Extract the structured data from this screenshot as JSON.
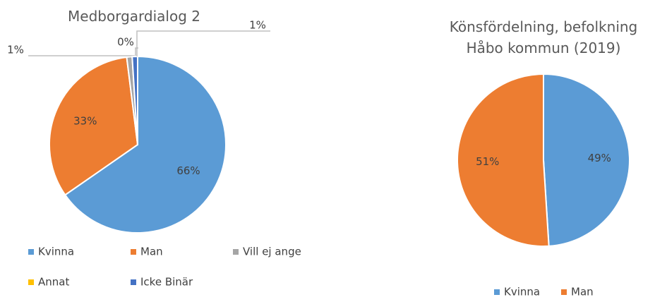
{
  "chart_data": [
    {
      "type": "pie",
      "title": "Medborgardialog 2",
      "categories": [
        "Kvinna",
        "Man",
        "Vill ej ange",
        "Annat",
        "Icke Binär"
      ],
      "values": [
        66,
        33,
        1,
        0,
        1
      ],
      "value_labels": [
        "66%",
        "33%",
        "1%",
        "0%",
        "1%"
      ],
      "colors": [
        "#5b9bd5",
        "#ed7d31",
        "#a5a5a5",
        "#ffc000",
        "#4472c4"
      ]
    },
    {
      "type": "pie",
      "title": "Könsfördelning, befolkning Håbo kommun (2019)",
      "categories": [
        "Kvinna",
        "Man"
      ],
      "values": [
        49,
        51
      ],
      "value_labels": [
        "49%",
        "51%"
      ],
      "colors": [
        "#5b9bd5",
        "#ed7d31"
      ]
    }
  ]
}
